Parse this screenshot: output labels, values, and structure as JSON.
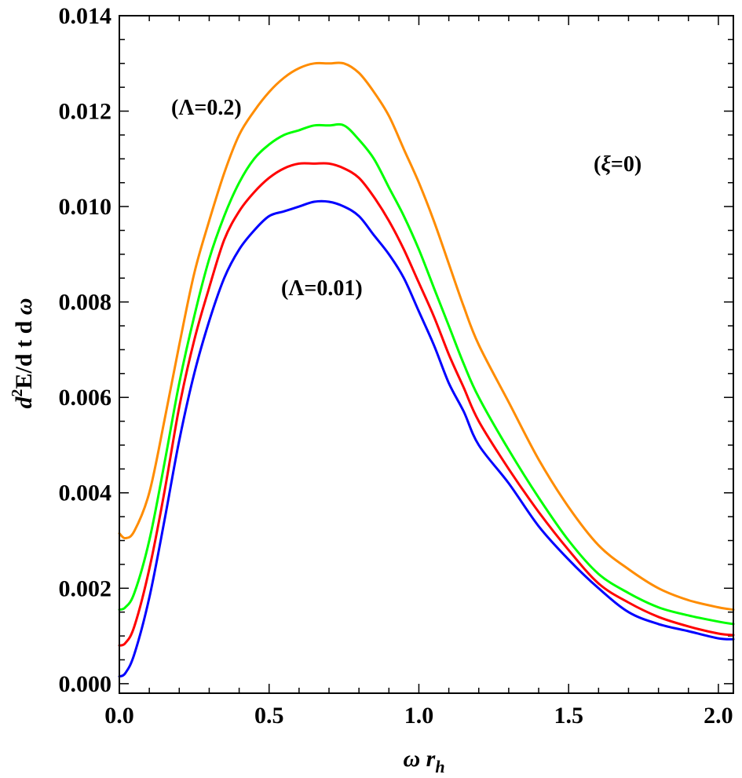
{
  "chart_data": {
    "type": "line",
    "xlabel": "ω r_h",
    "xlabel_main": "ω r",
    "xlabel_sub": "h",
    "ylabel": "d²E/d t d ω",
    "ylabel_d": "d",
    "ylabel_sup": "2",
    "ylabel_rest": "E/d t d ",
    "ylabel_omega": "ω",
    "xlim": [
      0.0,
      2.05
    ],
    "ylim": [
      -0.0002,
      0.014
    ],
    "x_ticks": [
      "0.0",
      "0.5",
      "1.0",
      "1.5",
      "2.0"
    ],
    "x_tick_values": [
      0.0,
      0.5,
      1.0,
      1.5,
      2.0
    ],
    "y_ticks": [
      "0.000",
      "0.002",
      "0.004",
      "0.006",
      "0.008",
      "0.010",
      "0.012",
      "0.014"
    ],
    "y_tick_values": [
      0.0,
      0.002,
      0.004,
      0.006,
      0.008,
      0.01,
      0.012,
      0.014
    ],
    "grid": false,
    "annotations": {
      "top": "(Λ=0.2)",
      "bottom": "(Λ=0.01)",
      "xi_open": "(",
      "xi_symbol": "ξ",
      "xi_rest": "=0)"
    },
    "series": [
      {
        "color": "#0000ff",
        "x": [
          0.0,
          0.02,
          0.05,
          0.1,
          0.15,
          0.2,
          0.25,
          0.3,
          0.35,
          0.4,
          0.45,
          0.5,
          0.55,
          0.6,
          0.65,
          0.7,
          0.75,
          0.8,
          0.85,
          0.9,
          0.95,
          1.0,
          1.05,
          1.1,
          1.15,
          1.2,
          1.3,
          1.4,
          1.5,
          1.6,
          1.7,
          1.8,
          1.9,
          2.0,
          2.05
        ],
        "y": [
          0.00015,
          0.00022,
          0.00062,
          0.0018,
          0.0034,
          0.0051,
          0.0065,
          0.0076,
          0.0085,
          0.0091,
          0.0095,
          0.0098,
          0.0099,
          0.01,
          0.0101,
          0.0101,
          0.01,
          0.0098,
          0.0094,
          0.009,
          0.0085,
          0.0078,
          0.0071,
          0.0063,
          0.0057,
          0.005,
          0.0042,
          0.0033,
          0.0026,
          0.002,
          0.0015,
          0.00125,
          0.0011,
          0.00095,
          0.00093
        ]
      },
      {
        "color": "#ff0000",
        "x": [
          0.0,
          0.02,
          0.05,
          0.1,
          0.15,
          0.2,
          0.25,
          0.3,
          0.35,
          0.4,
          0.45,
          0.5,
          0.55,
          0.6,
          0.65,
          0.7,
          0.75,
          0.8,
          0.85,
          0.9,
          0.95,
          1.0,
          1.05,
          1.1,
          1.15,
          1.2,
          1.3,
          1.4,
          1.5,
          1.6,
          1.7,
          1.8,
          1.9,
          2.0,
          2.05
        ],
        "y": [
          0.0008,
          0.00085,
          0.0012,
          0.0024,
          0.004,
          0.0058,
          0.0072,
          0.0083,
          0.0093,
          0.0099,
          0.0103,
          0.0106,
          0.0108,
          0.0109,
          0.0109,
          0.0109,
          0.0108,
          0.0106,
          0.0102,
          0.0097,
          0.0091,
          0.0084,
          0.0077,
          0.0069,
          0.0062,
          0.0055,
          0.0045,
          0.0036,
          0.0028,
          0.0021,
          0.0017,
          0.0014,
          0.0012,
          0.00105,
          0.00102
        ]
      },
      {
        "color": "#00ff00",
        "x": [
          0.0,
          0.02,
          0.05,
          0.1,
          0.15,
          0.2,
          0.25,
          0.3,
          0.35,
          0.4,
          0.45,
          0.5,
          0.55,
          0.6,
          0.65,
          0.7,
          0.75,
          0.8,
          0.85,
          0.9,
          0.95,
          1.0,
          1.05,
          1.1,
          1.15,
          1.2,
          1.3,
          1.4,
          1.5,
          1.6,
          1.7,
          1.8,
          1.9,
          2.0,
          2.05
        ],
        "y": [
          0.00155,
          0.0016,
          0.0019,
          0.003,
          0.0046,
          0.0063,
          0.0077,
          0.0089,
          0.0098,
          0.0105,
          0.011,
          0.0113,
          0.0115,
          0.0116,
          0.0117,
          0.0117,
          0.0117,
          0.0114,
          0.011,
          0.0104,
          0.0098,
          0.0091,
          0.0083,
          0.0075,
          0.0067,
          0.006,
          0.0049,
          0.0039,
          0.003,
          0.0023,
          0.0019,
          0.0016,
          0.00143,
          0.0013,
          0.00125
        ]
      },
      {
        "color": "#ff8c00",
        "x": [
          0.0,
          0.02,
          0.05,
          0.1,
          0.15,
          0.2,
          0.25,
          0.3,
          0.35,
          0.4,
          0.45,
          0.5,
          0.55,
          0.6,
          0.65,
          0.7,
          0.75,
          0.8,
          0.85,
          0.9,
          0.95,
          1.0,
          1.05,
          1.1,
          1.15,
          1.2,
          1.3,
          1.4,
          1.5,
          1.6,
          1.7,
          1.8,
          1.9,
          2.0,
          2.05
        ],
        "y": [
          0.00315,
          0.00305,
          0.0032,
          0.004,
          0.0055,
          0.0071,
          0.0086,
          0.0097,
          0.0107,
          0.0115,
          0.012,
          0.0124,
          0.0127,
          0.0129,
          0.013,
          0.013,
          0.013,
          0.0128,
          0.0124,
          0.0119,
          0.0112,
          0.0105,
          0.0097,
          0.0088,
          0.0079,
          0.0071,
          0.0059,
          0.0047,
          0.0037,
          0.0029,
          0.0024,
          0.002,
          0.00175,
          0.0016,
          0.00155
        ]
      }
    ]
  }
}
